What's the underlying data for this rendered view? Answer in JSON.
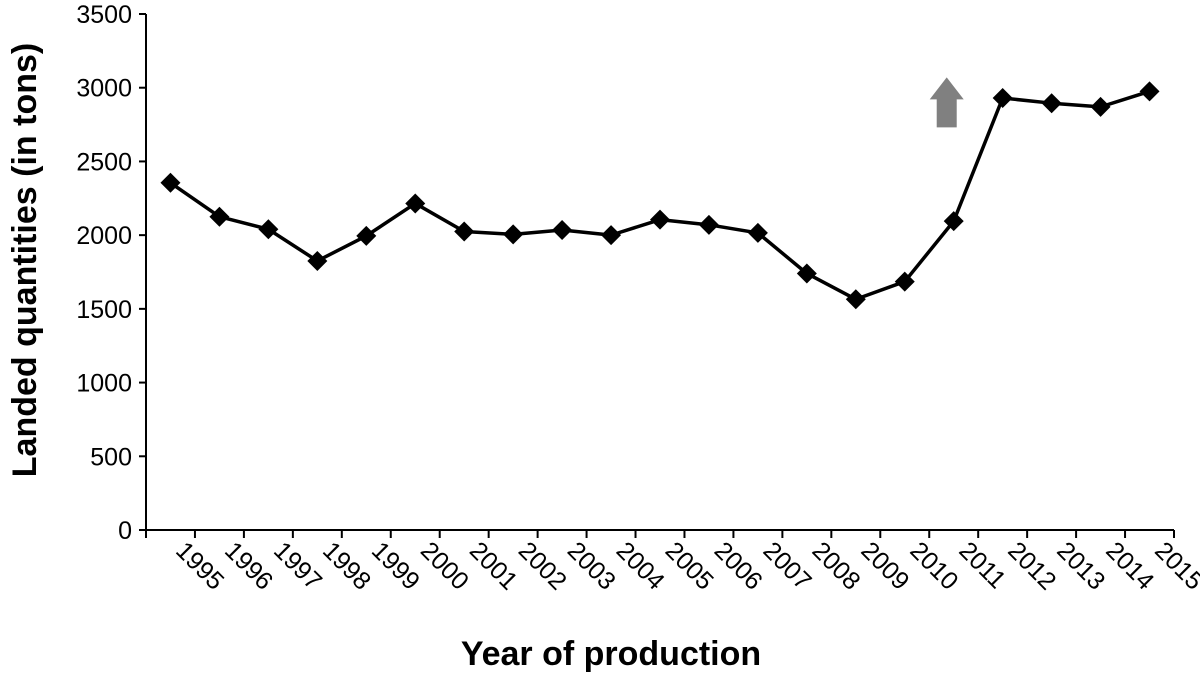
{
  "chart_data": {
    "type": "line",
    "title": "",
    "xlabel": "Year of production",
    "ylabel": "Landed quantities (in tons)",
    "ylim": [
      0,
      3500
    ],
    "yticks": [
      "0",
      "500",
      "1000",
      "1500",
      "2000",
      "2500",
      "3000",
      "3500"
    ],
    "categories": [
      "1995",
      "1996",
      "1997",
      "1998",
      "1999",
      "2000",
      "2001",
      "2002",
      "2003",
      "2004",
      "2005",
      "2006",
      "2007",
      "2008",
      "2009",
      "2010",
      "2011",
      "2012",
      "2013",
      "2014",
      "2015"
    ],
    "series": [
      {
        "values": [
          2355,
          2125,
          2040,
          1825,
          1995,
          2215,
          2025,
          2005,
          2035,
          2000,
          2105,
          2070,
          2015,
          1740,
          1565,
          1685,
          2095,
          2930,
          2895,
          2870,
          2975
        ],
        "color": "#000000",
        "marker": "diamond"
      }
    ],
    "annotation": {
      "type": "arrow-up",
      "color": "#808080",
      "near_category": "2011",
      "y_value": 2950
    },
    "grid": false,
    "legend": "none"
  }
}
